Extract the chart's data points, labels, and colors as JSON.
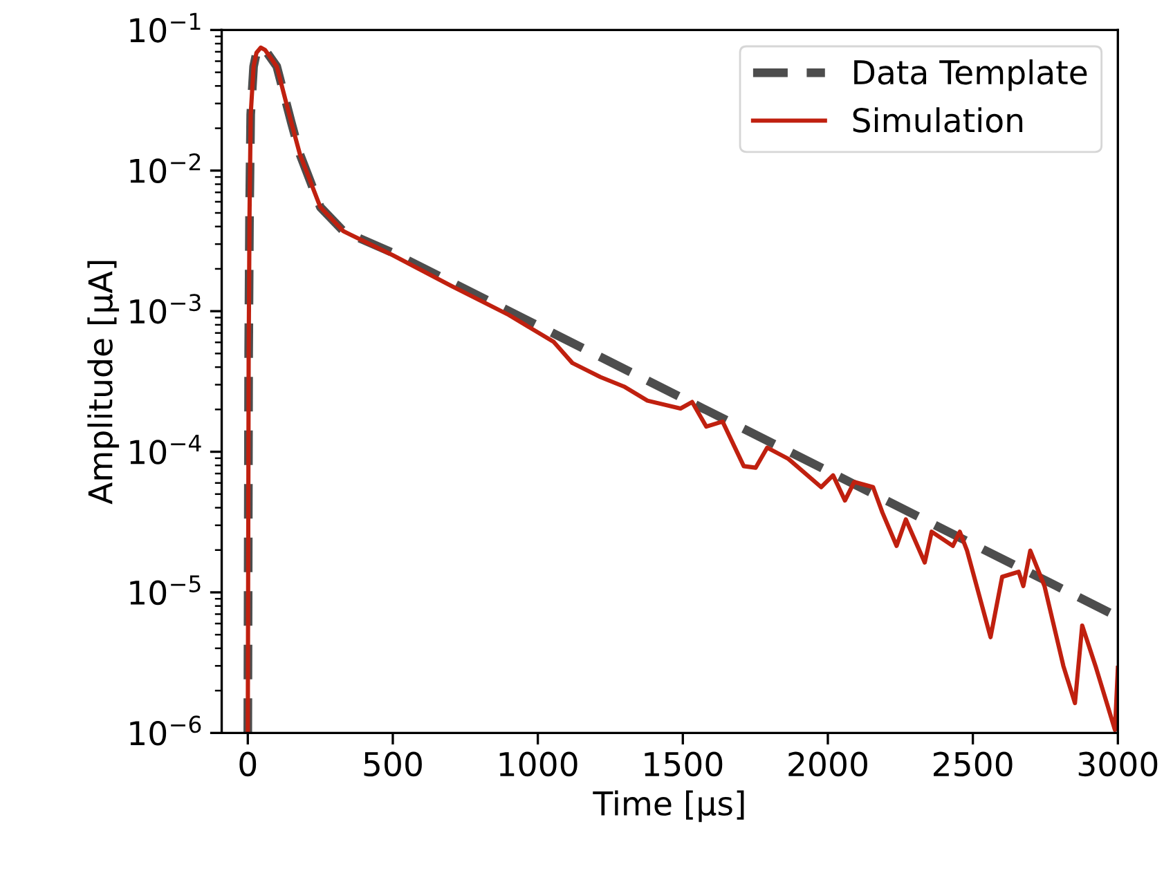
{
  "chart_data": {
    "type": "line",
    "xlabel": "Time [µs]",
    "ylabel": "Amplitude [µA]",
    "log": "y",
    "legend": "top right",
    "grid": false,
    "xlim": [
      -90,
      3000
    ],
    "xticks": [
      0,
      500,
      1000,
      1500,
      2000,
      2500,
      3000
    ],
    "ylim": [
      1e-06,
      0.1
    ],
    "yticks": [
      {
        "value": 1e-06,
        "label": "10$^{−6}$"
      },
      {
        "value": 1e-05,
        "label": "10$^{−5}$"
      },
      {
        "value": 0.0001,
        "label": "10$^{−4}$"
      },
      {
        "value": 0.001,
        "label": "10$^{−3}$"
      },
      {
        "value": 0.01,
        "label": "10$^{−2}$"
      },
      {
        "value": 0.1,
        "label": "10$^{−1}$"
      }
    ],
    "series": [
      {
        "name": "Data Template",
        "color": "#4d4d4d",
        "line_style": "dashed",
        "x": [
          0,
          3,
          6,
          10,
          20,
          30,
          45,
          60,
          100,
          150,
          180,
          250,
          330,
          500,
          1000,
          1500,
          2000,
          2500,
          3000
        ],
        "values": [
          1e-06,
          0.0005,
          0.005,
          0.025,
          0.055,
          0.069,
          0.075,
          0.072,
          0.055,
          0.022,
          0.013,
          0.0055,
          0.0037,
          0.0026,
          0.00079,
          0.00024,
          7.3e-05,
          2.2e-05,
          6.7e-06
        ]
      },
      {
        "name": "Simulation",
        "color": "#c0200f",
        "line_style": "solid",
        "x": [
          0,
          3,
          6,
          10,
          20,
          30,
          45,
          60,
          100,
          150,
          180,
          250,
          330,
          500,
          700,
          900,
          1055,
          1119,
          1216,
          1297,
          1378,
          1492,
          1532,
          1581,
          1637,
          1710,
          1751,
          1791,
          1864,
          1977,
          2018,
          2059,
          2091,
          2156,
          2188,
          2237,
          2269,
          2334,
          2358,
          2431,
          2455,
          2480,
          2561,
          2601,
          2658,
          2674,
          2698,
          2747,
          2812,
          2852,
          2877,
          2925,
          2990,
          3000
        ],
        "values": [
          1e-06,
          0.0005,
          0.005,
          0.025,
          0.055,
          0.069,
          0.075,
          0.072,
          0.055,
          0.022,
          0.013,
          0.0055,
          0.0037,
          0.0025,
          0.00152,
          0.00094,
          0.000604,
          0.000428,
          0.00034,
          0.000291,
          0.000231,
          0.000203,
          0.000226,
          0.000151,
          0.000164,
          7.9e-05,
          7.7e-05,
          0.000107,
          8.9e-05,
          5.6e-05,
          6.8e-05,
          4.5e-05,
          6.1e-05,
          5.6e-05,
          3.7e-05,
          2.14e-05,
          3.3e-05,
          1.63e-05,
          2.7e-05,
          2.14e-05,
          2.7e-05,
          1.98e-05,
          4.8e-06,
          1.29e-05,
          1.4e-05,
          1.11e-05,
          1.98e-05,
          1.11e-05,
          3e-06,
          1.63e-06,
          5.8e-06,
          2.9e-06,
          1.05e-06,
          2.9e-06
        ]
      }
    ]
  }
}
